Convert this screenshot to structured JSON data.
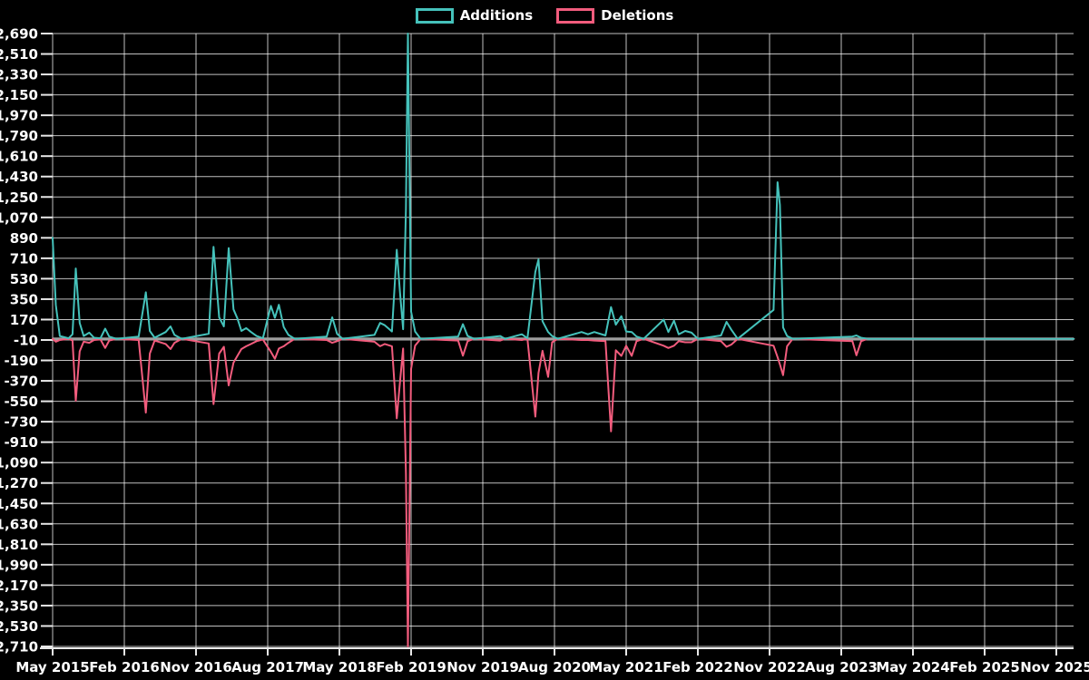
{
  "legend": {
    "items": [
      {
        "label": "Additions",
        "color": "#45C2BB"
      },
      {
        "label": "Deletions",
        "color": "#F25C7D"
      }
    ]
  },
  "chart_data": {
    "type": "line",
    "title": "",
    "xlabel": "",
    "ylabel": "",
    "background": "#000000",
    "text_color": "#FFFFFF",
    "grid_color": "rgba(255,255,255,0.75)",
    "axis_color": "#E8E8E8",
    "zero_line_color": "#9E9E9E",
    "legend_position": "top-center",
    "grid": true,
    "ylim": [
      -2710,
      2690
    ],
    "y_tick_step": 180,
    "y_tick_values": [
      2690,
      2510,
      2330,
      2150,
      1970,
      1790,
      1610,
      1430,
      1250,
      1070,
      890,
      710,
      530,
      350,
      170,
      -10,
      -190,
      -370,
      -550,
      -730,
      -910,
      -1090,
      -1270,
      -1450,
      -1630,
      -1810,
      -1990,
      -2170,
      -2350,
      -2530,
      -2710
    ],
    "y_tick_labels": [
      "2,690",
      "2,510",
      "2,330",
      "2,150",
      "1,970",
      "1,790",
      "1,610",
      "1,430",
      "1,250",
      "1,070",
      "890",
      "710",
      "530",
      "350",
      "170",
      "-10",
      "-190",
      "-370",
      "-550",
      "-730",
      "-910",
      "-1,090",
      "-1,270",
      "-1,450",
      "-1,630",
      "-1,810",
      "-1,990",
      "-2,170",
      "-2,350",
      "-2,530",
      "-2,710"
    ],
    "x_tick_labels": [
      "May 2015",
      "Feb 2016",
      "Nov 2016",
      "Aug 2017",
      "May 2018",
      "Feb 2019",
      "Nov 2019",
      "Aug 2020",
      "May 2021",
      "Feb 2022",
      "Nov 2022",
      "Aug 2023",
      "May 2024",
      "Feb 2025",
      "Nov 2025"
    ],
    "x_tick_interval_months": 9,
    "xlim_months": [
      0,
      128.2
    ],
    "x_months": [
      0,
      0.4,
      0.9,
      2,
      2.5,
      2.9,
      3.4,
      3.9,
      4.6,
      5.2,
      6,
      6.6,
      7.1,
      8,
      10.8,
      11.7,
      12.2,
      12.8,
      14.2,
      14.8,
      15.3,
      16.2,
      19.6,
      20.2,
      20.9,
      21.5,
      22.1,
      22.7,
      23.2,
      23.7,
      24.3,
      24.9,
      25.6,
      26.4,
      26.9,
      27.4,
      27.9,
      28.4,
      29,
      29.6,
      30.4,
      34.4,
      35.1,
      35.7,
      36.4,
      40.4,
      41.1,
      41.7,
      42.6,
      43.2,
      43.6,
      44,
      44.35,
      44.6,
      45,
      45.5,
      46.2,
      50.9,
      51.5,
      52.1,
      52.9,
      56.2,
      56.8,
      58.9,
      59.6,
      60.6,
      61,
      61.5,
      62.2,
      62.7,
      63.4,
      66.4,
      67.2,
      68,
      69.4,
      70.1,
      70.7,
      71.4,
      72,
      72.7,
      73.3,
      74.2,
      76.7,
      77.3,
      78,
      78.6,
      79.4,
      80.2,
      81,
      83.9,
      84.6,
      85.2,
      86,
      90.5,
      91,
      91.3,
      91.7,
      92.2,
      92.9,
      100.4,
      100.9,
      101.5,
      102.3,
      128.2
    ],
    "series": [
      {
        "name": "Additions",
        "color": "#45C2BB",
        "values": [
          890,
          300,
          25,
          5,
          40,
          620,
          140,
          25,
          55,
          10,
          5,
          90,
          20,
          0,
          20,
          410,
          70,
          10,
          60,
          110,
          35,
          0,
          45,
          810,
          190,
          110,
          800,
          260,
          180,
          70,
          95,
          60,
          25,
          5,
          150,
          290,
          185,
          300,
          105,
          35,
          0,
          20,
          190,
          45,
          0,
          35,
          140,
          120,
          65,
          785,
          415,
          85,
          1140,
          2690,
          240,
          65,
          0,
          20,
          130,
          25,
          0,
          25,
          0,
          40,
          5,
          590,
          700,
          155,
          60,
          25,
          0,
          60,
          40,
          60,
          30,
          280,
          125,
          200,
          65,
          60,
          20,
          0,
          170,
          60,
          160,
          40,
          70,
          55,
          0,
          30,
          150,
          80,
          0,
          255,
          1380,
          1180,
          100,
          25,
          0,
          20,
          30,
          10,
          0,
          0
        ]
      },
      {
        "name": "Deletions",
        "color": "#F25C7D",
        "values": [
          0,
          -25,
          -10,
          0,
          -15,
          -545,
          -110,
          -25,
          -35,
          -10,
          -5,
          -80,
          -15,
          0,
          -10,
          -650,
          -130,
          -15,
          -45,
          -90,
          -35,
          0,
          -40,
          -575,
          -130,
          -70,
          -410,
          -210,
          -150,
          -90,
          -65,
          -45,
          -20,
          -5,
          -60,
          -115,
          -175,
          -85,
          -65,
          -35,
          0,
          -10,
          -35,
          -20,
          0,
          -25,
          -65,
          -45,
          -65,
          -700,
          -385,
          -85,
          -1185,
          -2710,
          -265,
          -60,
          0,
          -15,
          -148,
          -20,
          0,
          -15,
          0,
          -10,
          0,
          -685,
          -300,
          -105,
          -335,
          -30,
          0,
          -10,
          -10,
          -15,
          -20,
          -815,
          -100,
          -150,
          -60,
          -150,
          -20,
          0,
          -60,
          -80,
          -60,
          -20,
          -30,
          -30,
          0,
          -20,
          -70,
          -50,
          0,
          -60,
          -160,
          -225,
          -320,
          -65,
          0,
          -20,
          -145,
          -20,
          0,
          0
        ]
      }
    ]
  }
}
